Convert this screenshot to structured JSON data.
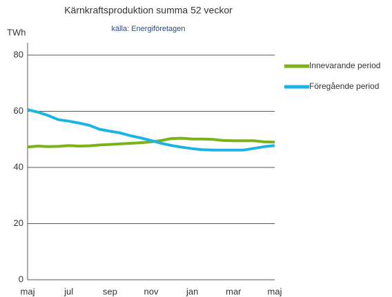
{
  "chart_data": {
    "type": "line",
    "title": "Kärnkraftsproduktion summa 52 veckor",
    "subtitle": "källa: Energiföretagen",
    "y_label": "TWh",
    "categories": [
      "maj",
      null,
      null,
      null,
      "jul",
      null,
      null,
      null,
      "sep",
      null,
      null,
      null,
      "nov",
      null,
      null,
      null,
      "jan",
      null,
      null,
      null,
      "mar",
      null,
      null,
      null,
      "maj"
    ],
    "series": [
      {
        "name": "Innevarande period",
        "color": "#7ab317",
        "values": [
          47.3,
          47.6,
          47.4,
          47.5,
          47.8,
          47.6,
          47.7,
          48.0,
          48.2,
          48.4,
          48.6,
          48.8,
          49.1,
          49.6,
          50.3,
          50.4,
          50.1,
          50.1,
          50.0,
          49.6,
          49.5,
          49.5,
          49.5,
          49.1,
          49.0
        ]
      },
      {
        "name": "Föregående period",
        "color": "#1bb4e4",
        "values": [
          60.6,
          59.7,
          58.5,
          57.0,
          56.5,
          55.8,
          55.0,
          53.6,
          52.9,
          52.3,
          51.3,
          50.5,
          49.6,
          48.6,
          47.8,
          47.2,
          46.7,
          46.3,
          46.2,
          46.2,
          46.2,
          46.2,
          46.8,
          47.4,
          47.8
        ]
      }
    ],
    "ylim": [
      0,
      80
    ],
    "yticks": [
      0,
      20,
      40,
      60,
      80
    ],
    "grid": true,
    "legend": "right"
  }
}
